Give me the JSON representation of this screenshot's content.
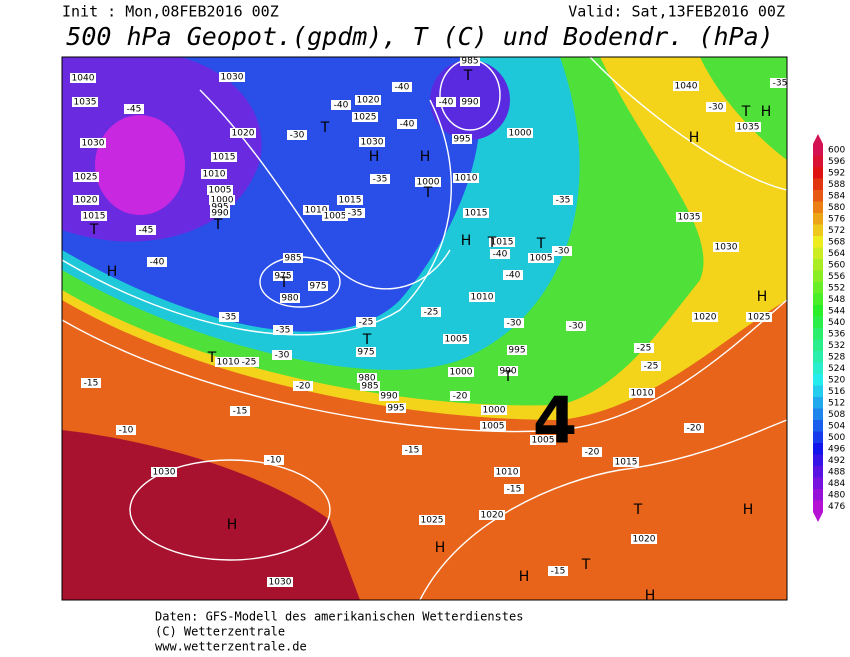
{
  "header": {
    "init": "Init : Mon,08FEB2016 00Z",
    "valid": "Valid: Sat,13FEB2016 00Z",
    "title": "500 hPa Geopot.(gpdm), T (C) und Bodendr. (hPa)"
  },
  "map": {
    "panel_number": "4",
    "pressure_labels": [
      "1040",
      "1030",
      "1035",
      "1030",
      "1020",
      "1015",
      "1010",
      "1005",
      "1000",
      "995",
      "990",
      "1025",
      "1020",
      "1015",
      "1020",
      "1025",
      "1030",
      "1015",
      "1010",
      "1005",
      "985",
      "990",
      "995",
      "1000",
      "1000",
      "1010",
      "1015",
      "1015",
      "1005",
      "1010",
      "985",
      "975",
      "975",
      "980",
      "1005",
      "995",
      "1000",
      "990",
      "975",
      "980",
      "985",
      "990",
      "995",
      "1000",
      "1005",
      "1005",
      "1010",
      "1015",
      "1025",
      "1020",
      "1020",
      "1030",
      "1030",
      "1040",
      "1035",
      "1035",
      "1030",
      "1020",
      "1025",
      "1010",
      "1010"
    ],
    "temperature_labels": [
      "-35",
      "-30",
      "-45",
      "-40",
      "-40",
      "-40",
      "-40",
      "-30",
      "-35",
      "-35",
      "-35",
      "-30",
      "-40",
      "-40",
      "-45",
      "-40",
      "-35",
      "-35",
      "-30",
      "-25",
      "-25",
      "-30",
      "-30",
      "-25",
      "-25",
      "-25",
      "-20",
      "-15",
      "-15",
      "-10",
      "-10",
      "-20",
      "-20",
      "-20",
      "-15",
      "-15",
      "-15"
    ],
    "centers": [
      "T",
      "T",
      "H",
      "H",
      "T",
      "T",
      "T",
      "H",
      "H",
      "T",
      "T",
      "T",
      "T",
      "T",
      "T",
      "H",
      "T",
      "H",
      "H",
      "H",
      "T",
      "H",
      "H",
      "T",
      "H",
      "H"
    ]
  },
  "colorbar": {
    "levels": [
      600,
      596,
      592,
      588,
      584,
      580,
      576,
      572,
      568,
      564,
      560,
      556,
      552,
      548,
      544,
      540,
      536,
      532,
      528,
      524,
      520,
      516,
      512,
      508,
      504,
      500,
      496,
      492,
      488,
      484,
      480,
      476
    ]
  },
  "footer": {
    "lines": [
      "Daten: GFS-Modell des amerikanischen Wetterdienstes",
      "(C) Wetterzentrale",
      "www.wetterzentrale.de"
    ]
  }
}
